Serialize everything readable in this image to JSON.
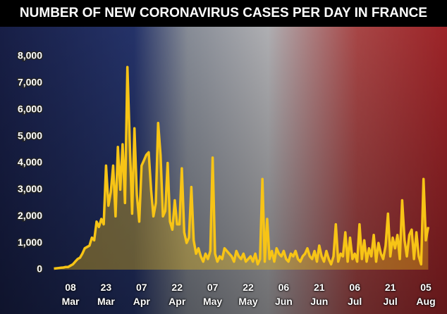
{
  "chart_data": {
    "type": "line",
    "title": "NUMBER OF NEW CORONAVIRUS CASES PER DAY IN FRANCE",
    "categories": [
      null,
      null,
      null,
      null,
      null,
      null,
      null,
      "08 Mar",
      null,
      null,
      null,
      null,
      null,
      null,
      null,
      null,
      null,
      null,
      null,
      null,
      null,
      null,
      "23 Mar",
      null,
      null,
      null,
      null,
      null,
      null,
      null,
      null,
      null,
      null,
      null,
      null,
      null,
      null,
      "07 Apr",
      null,
      null,
      null,
      null,
      null,
      null,
      null,
      null,
      null,
      null,
      null,
      null,
      null,
      null,
      "22 Apr",
      null,
      null,
      null,
      null,
      null,
      null,
      null,
      null,
      null,
      null,
      null,
      null,
      null,
      null,
      "07 May",
      null,
      null,
      null,
      null,
      null,
      null,
      null,
      null,
      null,
      null,
      null,
      null,
      null,
      null,
      "22 May",
      null,
      null,
      null,
      null,
      null,
      null,
      null,
      null,
      null,
      null,
      null,
      null,
      null,
      null,
      "06 Jun",
      null,
      null,
      null,
      null,
      null,
      null,
      null,
      null,
      null,
      null,
      null,
      null,
      null,
      null,
      "21 Jun",
      null,
      null,
      null,
      null,
      null,
      null,
      null,
      null,
      null,
      null,
      null,
      null,
      null,
      null,
      "06 Jul",
      null,
      null,
      null,
      null,
      null,
      null,
      null,
      null,
      null,
      null,
      null,
      null,
      null,
      null,
      "21 Jul",
      null,
      null,
      null,
      null,
      null,
      null,
      null,
      null,
      null,
      null,
      null,
      null,
      null,
      null,
      "05 Aug",
      null
    ],
    "series": [
      {
        "color": "#f7c416",
        "values": [
          40,
          50,
          60,
          70,
          80,
          100,
          100,
          150,
          200,
          300,
          400,
          450,
          600,
          800,
          850,
          900,
          1200,
          1100,
          1800,
          1600,
          1900,
          1700,
          3900,
          2400,
          2900,
          3900,
          2000,
          4600,
          3000,
          4700,
          2500,
          7600,
          4800,
          2100,
          5300,
          2800,
          1800,
          3900,
          4100,
          4300,
          4400,
          3000,
          2000,
          2500,
          5500,
          4300,
          2000,
          2200,
          4000,
          1800,
          1500,
          2600,
          1700,
          1700,
          3800,
          1400,
          1000,
          1200,
          3100,
          1100,
          600,
          800,
          500,
          300,
          600,
          400,
          700,
          4200,
          600,
          300,
          500,
          400,
          800,
          700,
          600,
          500,
          300,
          700,
          500,
          400,
          600,
          300,
          400,
          500,
          300,
          600,
          200,
          400,
          3400,
          300,
          1900,
          400,
          700,
          300,
          800,
          600,
          500,
          700,
          400,
          300,
          600,
          500,
          700,
          400,
          300,
          500,
          600,
          800,
          500,
          400,
          700,
          300,
          900,
          500,
          300,
          700,
          400,
          200,
          500,
          1700,
          300,
          600,
          500,
          1400,
          300,
          1200,
          400,
          600,
          300,
          1700,
          400,
          1100,
          300,
          800,
          500,
          1300,
          300,
          1000,
          600,
          400,
          900,
          2100,
          500,
          1200,
          800,
          1300,
          400,
          2600,
          1100,
          500,
          1300,
          1500,
          400,
          1400,
          500,
          200,
          3400,
          1100,
          1600
        ]
      }
    ],
    "ylim": [
      0,
      8000
    ],
    "yticks": [
      0,
      {
        "value": 1000,
        "label": "1,000"
      },
      {
        "value": 2000,
        "label": "2,000"
      },
      {
        "value": 3000,
        "label": "3,000"
      },
      {
        "value": 4000,
        "label": "4,000"
      },
      {
        "value": 5000,
        "label": "5,000"
      },
      {
        "value": 6000,
        "label": "6,000"
      },
      {
        "value": 7000,
        "label": "7,000"
      },
      {
        "value": 8000,
        "label": "8,000"
      }
    ],
    "grid": false
  }
}
